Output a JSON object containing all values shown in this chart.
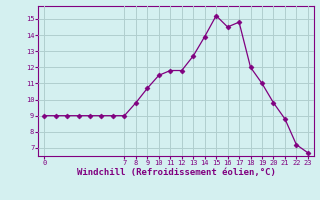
{
  "x": [
    0,
    1,
    2,
    3,
    4,
    5,
    6,
    7,
    8,
    9,
    10,
    11,
    12,
    13,
    14,
    15,
    16,
    17,
    18,
    19,
    20,
    21,
    22,
    23
  ],
  "y": [
    9,
    9,
    9,
    9,
    9,
    9,
    9,
    9,
    9.8,
    10.7,
    11.5,
    11.8,
    11.8,
    12.7,
    13.9,
    15.2,
    14.5,
    14.8,
    12.0,
    11.0,
    9.8,
    8.8,
    7.2,
    6.7
  ],
  "line_color": "#800080",
  "marker": "D",
  "marker_size": 2.5,
  "bg_color": "#d4f0f0",
  "grid_color": "#b0cece",
  "xlabel": "Windchill (Refroidissement éolien,°C)",
  "xlabel_color": "#800080",
  "tick_color": "#800080",
  "xlim": [
    -0.5,
    23.5
  ],
  "ylim": [
    6.5,
    15.8
  ],
  "yticks": [
    7,
    8,
    9,
    10,
    11,
    12,
    13,
    14,
    15
  ],
  "xticks": [
    0,
    7,
    8,
    9,
    10,
    11,
    12,
    13,
    14,
    15,
    16,
    17,
    18,
    19,
    20,
    21,
    22,
    23
  ],
  "axis_color": "#800080",
  "tick_fontsize": 5.0,
  "xlabel_fontsize": 6.5
}
